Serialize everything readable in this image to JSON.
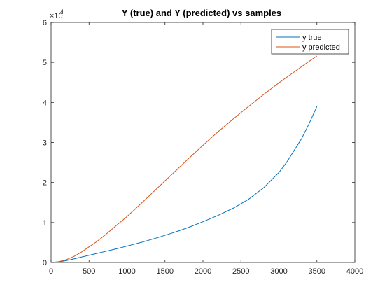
{
  "chart_data": {
    "type": "line",
    "title": "Y (true) and Y (predicted) vs samples",
    "xlabel": "",
    "ylabel": "",
    "xlim": [
      0,
      4000
    ],
    "ylim": [
      0,
      60000
    ],
    "x_ticks": [
      0,
      500,
      1000,
      1500,
      2000,
      2500,
      3000,
      3500,
      4000
    ],
    "y_ticks": [
      0,
      10000,
      20000,
      30000,
      40000,
      50000,
      60000
    ],
    "y_tick_labels": [
      "0",
      "1",
      "2",
      "3",
      "4",
      "5",
      "6"
    ],
    "y_exponent_base": "×10",
    "y_exponent_power": "4",
    "grid": false,
    "legend_position": "top-right",
    "series": [
      {
        "name": "y true",
        "color": "#0072BD",
        "x": [
          0,
          100,
          200,
          300,
          400,
          500,
          600,
          700,
          800,
          900,
          1000,
          1200,
          1400,
          1600,
          1800,
          2000,
          2200,
          2400,
          2600,
          2800,
          3000,
          3100,
          3200,
          3300,
          3400,
          3500
        ],
        "y": [
          0,
          150,
          450,
          900,
          1350,
          1800,
          2250,
          2700,
          3150,
          3600,
          4100,
          5100,
          6200,
          7400,
          8700,
          10200,
          11800,
          13600,
          15800,
          18700,
          22500,
          25000,
          28000,
          31000,
          34800,
          39000
        ]
      },
      {
        "name": "y predicted",
        "color": "#D95319",
        "x": [
          0,
          100,
          200,
          300,
          400,
          500,
          600,
          700,
          800,
          900,
          1000,
          1200,
          1400,
          1600,
          1800,
          2000,
          2200,
          2400,
          2600,
          2800,
          3000,
          3200,
          3400,
          3500
        ],
        "y": [
          0,
          200,
          700,
          1500,
          2600,
          3900,
          5200,
          6700,
          8300,
          9900,
          11500,
          15000,
          18600,
          22200,
          25800,
          29300,
          32700,
          35900,
          39000,
          42000,
          44900,
          47600,
          50300,
          51600
        ]
      }
    ]
  }
}
